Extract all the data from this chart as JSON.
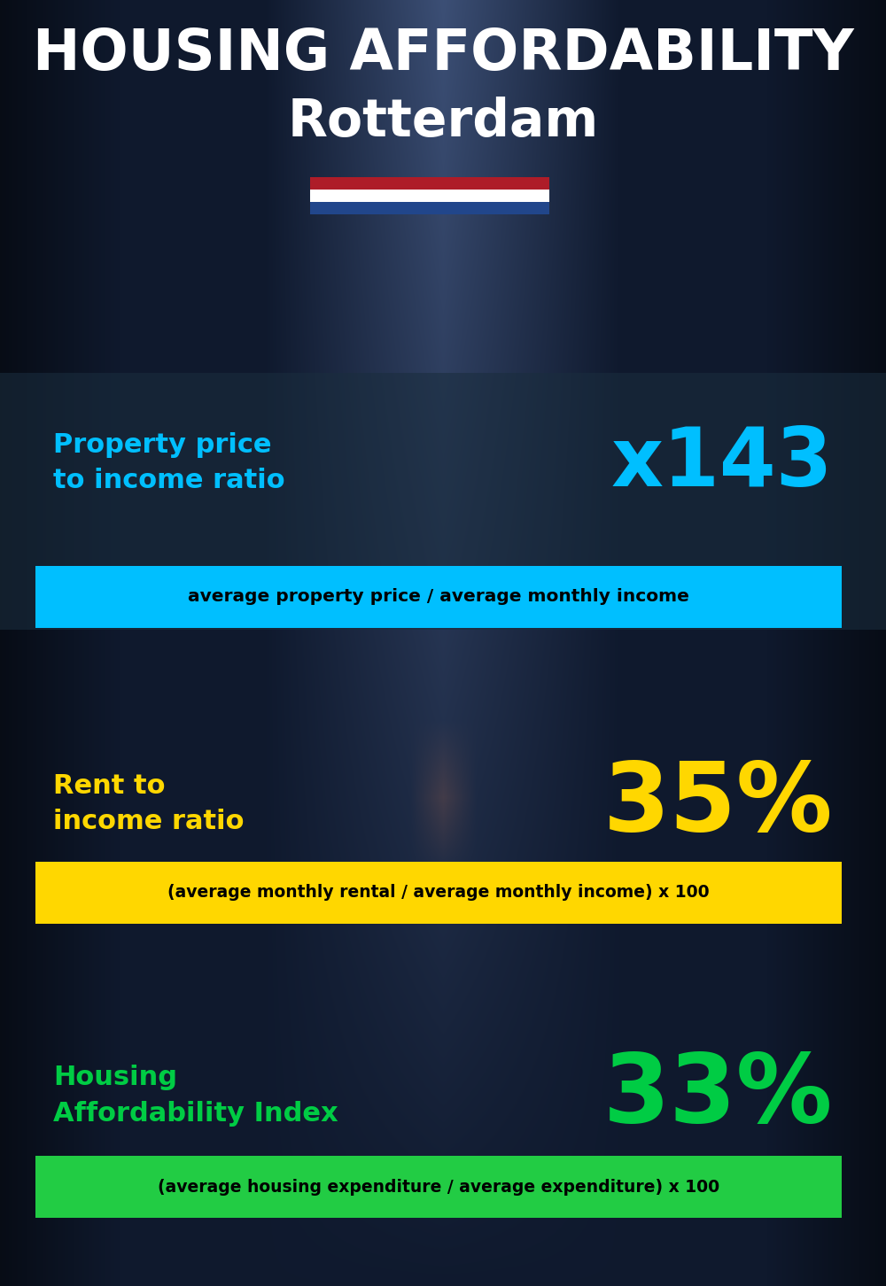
{
  "title_line1": "HOUSING AFFORDABILITY",
  "title_line2": "Rotterdam",
  "flag_colors": [
    "#AE1C28",
    "#FFFFFF",
    "#21468B"
  ],
  "section1_label": "Property price\nto income ratio",
  "section1_value": "x143",
  "section1_formula": "average property price / average monthly income",
  "section1_label_color": "#00BFFF",
  "section1_value_color": "#00BFFF",
  "section1_formula_bg": "#00BFFF",
  "section1_formula_color": "#000000",
  "section2_label": "Rent to\nincome ratio",
  "section2_value": "35%",
  "section2_formula": "(average monthly rental / average monthly income) x 100",
  "section2_label_color": "#FFD700",
  "section2_value_color": "#FFD700",
  "section2_formula_bg": "#FFD700",
  "section2_formula_color": "#000000",
  "section3_label": "Housing\nAffordability Index",
  "section3_value": "33%",
  "section3_formula": "(average housing expenditure / average expenditure) x 100",
  "section3_label_color": "#00CC44",
  "section3_value_color": "#00CC44",
  "section3_formula_bg": "#22CC44",
  "section3_formula_color": "#000000",
  "bg_color": "#0d1b2a",
  "title_color": "#FFFFFF",
  "panel_color": "#1a2d40",
  "panel_alpha": 0.55
}
